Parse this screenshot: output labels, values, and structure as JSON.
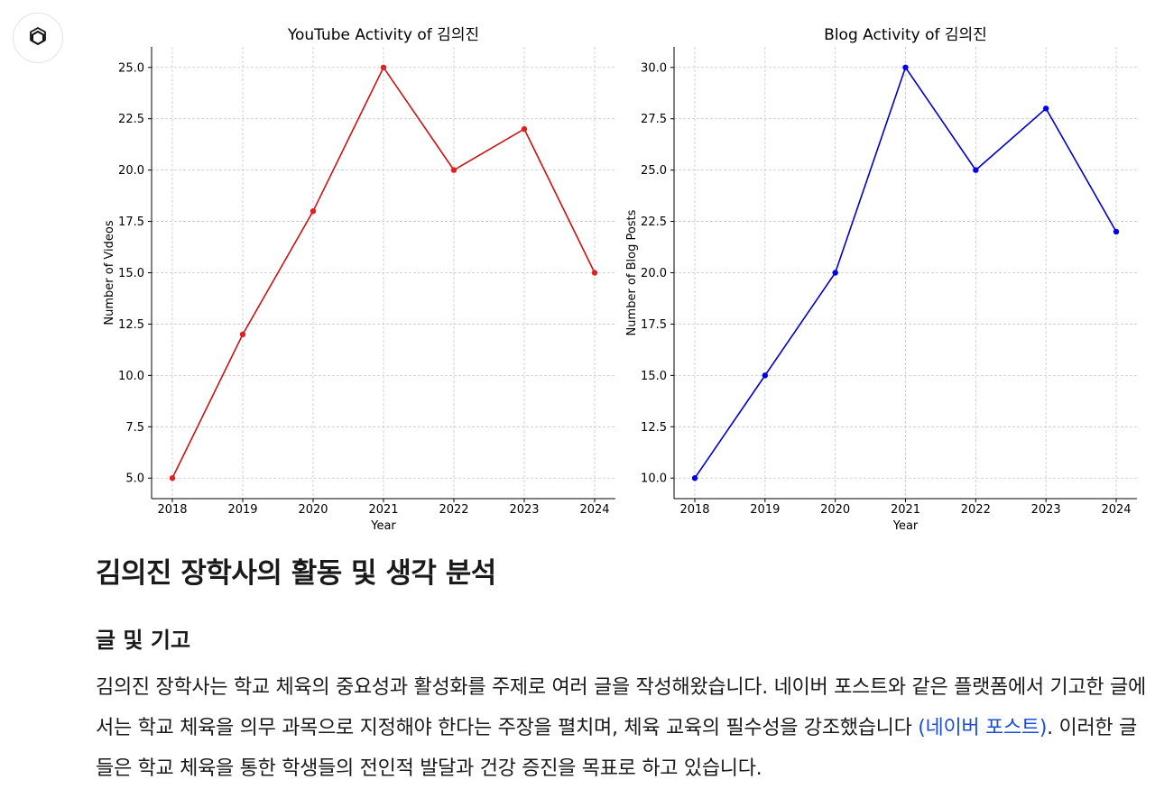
{
  "assistant": {
    "avatar_icon": "openai-logo-icon"
  },
  "chart_data": [
    {
      "type": "line",
      "title": "YouTube Activity of 김의진",
      "xlabel": "Year",
      "ylabel": "Number of Videos",
      "x": [
        2018,
        2019,
        2020,
        2021,
        2022,
        2023,
        2024
      ],
      "series": [
        {
          "values": [
            5,
            12,
            18,
            25,
            20,
            22,
            15
          ],
          "color": "#cc1111",
          "marker_color": "#dd2222"
        }
      ],
      "ylim": [
        4.0,
        26.0
      ],
      "yticks": [
        "5.0",
        "7.5",
        "10.0",
        "12.5",
        "15.0",
        "17.5",
        "20.0",
        "22.5",
        "25.0"
      ],
      "grid": true
    },
    {
      "type": "line",
      "title": "Blog Activity of 김의진",
      "xlabel": "Year",
      "ylabel": "Number of Blog Posts",
      "x": [
        2018,
        2019,
        2020,
        2021,
        2022,
        2023,
        2024
      ],
      "series": [
        {
          "values": [
            10,
            15,
            20,
            30,
            25,
            28,
            22
          ],
          "color": "#0000cc",
          "marker_color": "#0000ee"
        }
      ],
      "ylim": [
        9.0,
        31.0
      ],
      "yticks": [
        "10.0",
        "12.5",
        "15.0",
        "17.5",
        "20.0",
        "22.5",
        "25.0",
        "27.5",
        "30.0"
      ],
      "grid": true
    }
  ],
  "article": {
    "heading": "김의진 장학사의 활동 및 생각 분석",
    "subheading": "글 및 기고",
    "paragraph_before": "김의진 장학사는 학교 체육의 중요성과 활성화를 주제로 여러 글을 작성해왔습니다. 네이버 포스트와 같은 플랫폼에서 기고한 글에서는 학교 체육을 의무 과목으로 지정해야 한다는 주장을 펼치며, 체육 교육의 필수성을 강조했습니다 ",
    "link_text": "(네이버 포스트)",
    "paragraph_after": ". 이러한 글들은 학교 체육을 통한 학생들의 전인적 발달과 건강 증진을 목표로 하고 있습니다."
  }
}
